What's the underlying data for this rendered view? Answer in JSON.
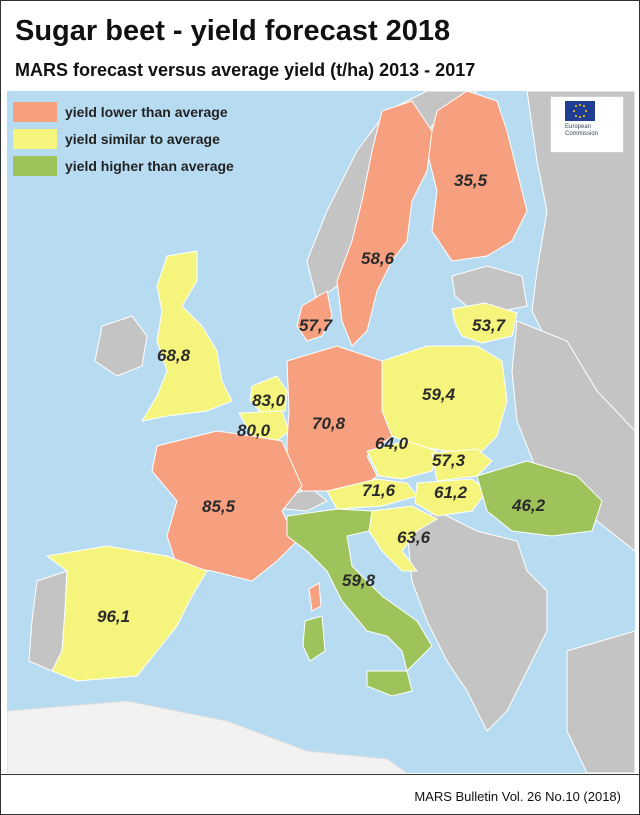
{
  "title": "Sugar beet - yield forecast 2018",
  "subtitle": "MARS forecast versus average yield (t/ha) 2013 - 2017",
  "legend": [
    {
      "label": "yield lower than average",
      "color": "#f7a080"
    },
    {
      "label": "yield similar to average",
      "color": "#f5f47c"
    },
    {
      "label": "yield higher than average",
      "color": "#9dc35a"
    }
  ],
  "colors": {
    "sea": "#b7dcf2",
    "non_eu": "#c4c4c4",
    "no_forecast": "#f2f2f2"
  },
  "logo": {
    "icon": "eu-flag-icon",
    "text_line1": "European",
    "text_line2": "Commission"
  },
  "countries": [
    {
      "name": "Finland",
      "value": "35,5",
      "category": "lower"
    },
    {
      "name": "Sweden",
      "value": "58,6",
      "category": "lower"
    },
    {
      "name": "Denmark",
      "value": "57,7",
      "category": "lower"
    },
    {
      "name": "Lithuania",
      "value": "53,7",
      "category": "similar"
    },
    {
      "name": "United Kingdom",
      "value": "68,8",
      "category": "similar"
    },
    {
      "name": "Poland",
      "value": "59,4",
      "category": "similar"
    },
    {
      "name": "Netherlands",
      "value": "83,0",
      "category": "similar"
    },
    {
      "name": "Germany",
      "value": "70,8",
      "category": "lower"
    },
    {
      "name": "Belgium",
      "value": "80,0",
      "category": "similar"
    },
    {
      "name": "Czechia",
      "value": "64,0",
      "category": "similar"
    },
    {
      "name": "Slovakia",
      "value": "57,3",
      "category": "similar"
    },
    {
      "name": "France",
      "value": "85,5",
      "category": "lower"
    },
    {
      "name": "Austria",
      "value": "71,6",
      "category": "similar"
    },
    {
      "name": "Hungary",
      "value": "61,2",
      "category": "similar"
    },
    {
      "name": "Romania",
      "value": "46,2",
      "category": "higher"
    },
    {
      "name": "Croatia",
      "value": "63,6",
      "category": "similar"
    },
    {
      "name": "Italy",
      "value": "59,8",
      "category": "higher"
    },
    {
      "name": "Spain",
      "value": "96,1",
      "category": "similar"
    }
  ],
  "footer": "MARS Bulletin Vol. 26 No.10 (2018)"
}
